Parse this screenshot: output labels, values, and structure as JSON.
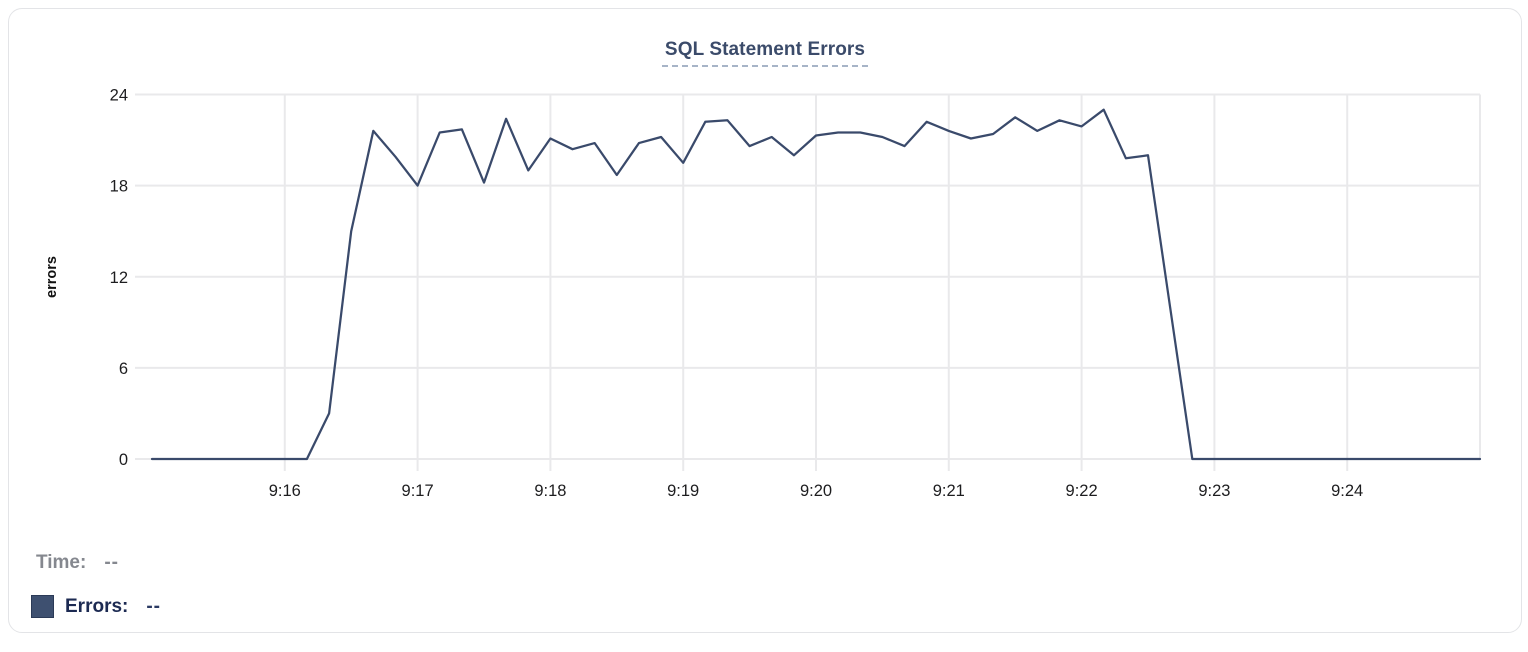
{
  "header": {
    "title": "SQL Statement Errors"
  },
  "chart_data": {
    "type": "line",
    "title": "SQL Statement Errors",
    "xlabel": "",
    "ylabel": "errors",
    "ylim": [
      0,
      24
    ],
    "y_ticks": [
      0,
      6,
      12,
      18,
      24
    ],
    "x_tick_labels": [
      "9:16",
      "9:17",
      "9:18",
      "9:19",
      "9:20",
      "9:21",
      "9:22",
      "9:23",
      "9:24"
    ],
    "x_range": [
      "9:15:00",
      "9:25:00"
    ],
    "interval_seconds": 10,
    "grid": true,
    "legend_position": "bottom-left",
    "line_color": "#3a4a6b",
    "grid_color": "#e9e9eb",
    "axis_text_color": "#1d1d1f",
    "series": [
      {
        "name": "Errors",
        "color": "#3e5070",
        "times": [
          "9:15:00",
          "9:15:10",
          "9:15:20",
          "9:15:30",
          "9:15:40",
          "9:15:50",
          "9:16:00",
          "9:16:10",
          "9:16:20",
          "9:16:30",
          "9:16:40",
          "9:16:50",
          "9:17:00",
          "9:17:10",
          "9:17:20",
          "9:17:30",
          "9:17:40",
          "9:17:50",
          "9:18:00",
          "9:18:10",
          "9:18:20",
          "9:18:30",
          "9:18:40",
          "9:18:50",
          "9:19:00",
          "9:19:10",
          "9:19:20",
          "9:19:30",
          "9:19:40",
          "9:19:50",
          "9:20:00",
          "9:20:10",
          "9:20:20",
          "9:20:30",
          "9:20:40",
          "9:20:50",
          "9:21:00",
          "9:21:10",
          "9:21:20",
          "9:21:30",
          "9:21:40",
          "9:21:50",
          "9:22:00",
          "9:22:10",
          "9:22:20",
          "9:22:30",
          "9:22:40",
          "9:22:50",
          "9:23:00",
          "9:23:10",
          "9:23:20",
          "9:23:30",
          "9:23:40",
          "9:23:50",
          "9:24:00",
          "9:24:10",
          "9:24:20",
          "9:24:30",
          "9:24:40",
          "9:24:50",
          "9:25:00"
        ],
        "values": [
          0,
          0,
          0,
          0,
          0,
          0,
          0,
          0,
          3,
          15,
          21.6,
          19.9,
          18,
          21.5,
          21.7,
          18.2,
          22.4,
          19,
          21.1,
          20.4,
          20.8,
          18.7,
          20.8,
          21.2,
          19.5,
          22.2,
          22.3,
          20.6,
          21.2,
          20,
          21.3,
          21.5,
          21.5,
          21.2,
          20.6,
          22.2,
          21.6,
          21.1,
          21.4,
          22.5,
          21.6,
          22.3,
          21.9,
          23,
          19.8,
          20,
          10,
          0,
          0,
          0,
          0,
          0,
          0,
          0,
          0,
          0,
          0,
          0,
          0,
          0,
          0
        ]
      }
    ]
  },
  "legend": {
    "time_label": "Time:",
    "time_value": "--",
    "errors_label": "Errors:",
    "errors_value": "--",
    "swatch_color": "#3e5070"
  }
}
